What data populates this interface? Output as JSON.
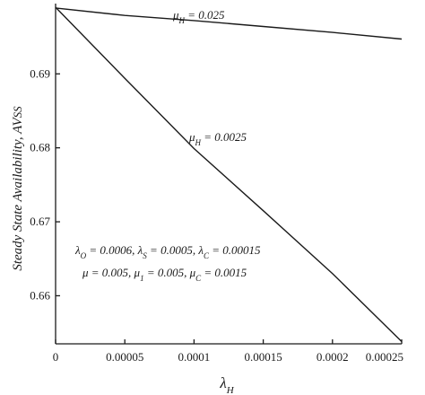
{
  "chart_data": {
    "type": "line",
    "xlabel": "λH",
    "ylabel": "Steady State Availability, AVss",
    "xlim": [
      0,
      0.00025
    ],
    "ylim": [
      0.6535,
      0.6995
    ],
    "xticks": [
      0,
      5e-05,
      0.0001,
      0.00015,
      0.0002,
      0.00025
    ],
    "xtick_labels": [
      "0",
      "0.00005",
      "0.0001",
      "0.00015",
      "0.0002",
      "0.00025"
    ],
    "yticks": [
      0.66,
      0.67,
      0.68,
      0.69
    ],
    "ytick_labels": [
      "0.66",
      "0.67",
      "0.68",
      "0.69"
    ],
    "grid": false,
    "series": [
      {
        "name": "μH = 0.025",
        "x": [
          0,
          5e-05,
          0.0001,
          0.00015,
          0.0002,
          0.00025
        ],
        "y": [
          0.6989,
          0.6979,
          0.6972,
          0.6964,
          0.6956,
          0.6947
        ]
      },
      {
        "name": "μH = 0.0025",
        "x": [
          0,
          5e-05,
          0.0001,
          0.00015,
          0.0002,
          0.00025
        ],
        "y": [
          0.699,
          0.6894,
          0.6799,
          0.6715,
          0.663,
          0.6538
        ]
      }
    ],
    "annotations": [
      "μH = 0.025",
      "μH = 0.0025",
      "λO = 0.0006,  λS = 0.0005,  λC = 0.00015",
      "μ = 0.005,  μ1 = 0.005,  μC = 0.0015"
    ]
  }
}
